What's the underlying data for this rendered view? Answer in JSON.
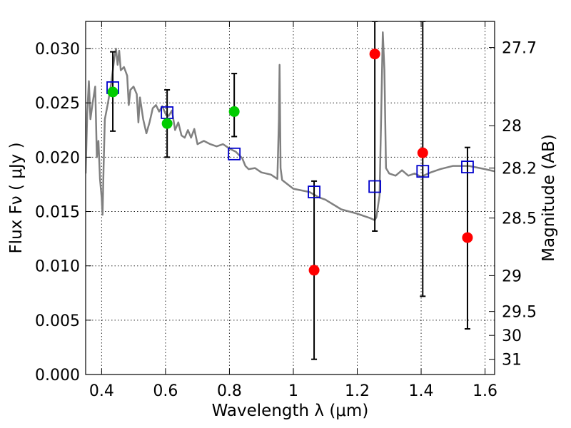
{
  "chart_data": {
    "type": "scatter",
    "title": "",
    "xlabel": "Wavelength  λ (μm)",
    "ylabel": "Flux  Fν  ( μJy )",
    "y2label": "Magnitude (AB)",
    "xlim": [
      0.35,
      1.63
    ],
    "ylim": [
      0.0,
      0.0325
    ],
    "grid": true,
    "x_ticks": [
      0.4,
      0.6,
      0.8,
      1.0,
      1.2,
      1.4,
      1.6
    ],
    "x_tick_labels": [
      "0.4",
      "0.6",
      "0.8",
      "1",
      "1.2",
      "1.4",
      "1.6"
    ],
    "y_ticks": [
      0.0,
      0.005,
      0.01,
      0.015,
      0.02,
      0.025,
      0.03
    ],
    "y_tick_labels": [
      "0.000",
      "0.005",
      "0.010",
      "0.015",
      "0.020",
      "0.025",
      "0.030"
    ],
    "y2_ticks": [
      {
        "label": "27.7",
        "flux": 0.0301
      },
      {
        "label": "28",
        "flux": 0.0229
      },
      {
        "label": "28.2",
        "flux": 0.019
      },
      {
        "label": "28.5",
        "flux": 0.0144
      },
      {
        "label": "29",
        "flux": 0.0091
      },
      {
        "label": "29.5",
        "flux": 0.0058
      },
      {
        "label": "30",
        "flux": 0.0036
      },
      {
        "label": "31",
        "flux": 0.0014
      }
    ],
    "model_spectrum": {
      "color": "#808080",
      "points": [
        [
          0.35,
          0.0185
        ],
        [
          0.355,
          0.024
        ],
        [
          0.36,
          0.027
        ],
        [
          0.365,
          0.0235
        ],
        [
          0.372,
          0.025
        ],
        [
          0.38,
          0.0265
        ],
        [
          0.385,
          0.02
        ],
        [
          0.39,
          0.0215
        ],
        [
          0.395,
          0.018
        ],
        [
          0.4,
          0.0163
        ],
        [
          0.403,
          0.0147
        ],
        [
          0.406,
          0.019
        ],
        [
          0.41,
          0.0235
        ],
        [
          0.42,
          0.025
        ],
        [
          0.43,
          0.0268
        ],
        [
          0.44,
          0.0292
        ],
        [
          0.445,
          0.03
        ],
        [
          0.45,
          0.0285
        ],
        [
          0.455,
          0.0298
        ],
        [
          0.46,
          0.028
        ],
        [
          0.47,
          0.0283
        ],
        [
          0.48,
          0.0275
        ],
        [
          0.485,
          0.0248
        ],
        [
          0.49,
          0.0262
        ],
        [
          0.5,
          0.0265
        ],
        [
          0.51,
          0.0258
        ],
        [
          0.515,
          0.0232
        ],
        [
          0.52,
          0.0255
        ],
        [
          0.53,
          0.0235
        ],
        [
          0.54,
          0.0222
        ],
        [
          0.55,
          0.0232
        ],
        [
          0.56,
          0.0245
        ],
        [
          0.57,
          0.0248
        ],
        [
          0.58,
          0.0242
        ],
        [
          0.59,
          0.0247
        ],
        [
          0.6,
          0.024
        ],
        [
          0.61,
          0.0238
        ],
        [
          0.62,
          0.0243
        ],
        [
          0.63,
          0.0225
        ],
        [
          0.64,
          0.0232
        ],
        [
          0.65,
          0.022
        ],
        [
          0.66,
          0.0218
        ],
        [
          0.67,
          0.0225
        ],
        [
          0.68,
          0.0218
        ],
        [
          0.69,
          0.0226
        ],
        [
          0.7,
          0.0212
        ],
        [
          0.72,
          0.0215
        ],
        [
          0.74,
          0.0212
        ],
        [
          0.76,
          0.021
        ],
        [
          0.78,
          0.0212
        ],
        [
          0.8,
          0.0208
        ],
        [
          0.82,
          0.0205
        ],
        [
          0.84,
          0.0199
        ],
        [
          0.85,
          0.0192
        ],
        [
          0.86,
          0.0189
        ],
        [
          0.88,
          0.019
        ],
        [
          0.9,
          0.0186
        ],
        [
          0.93,
          0.0184
        ],
        [
          0.95,
          0.018
        ],
        [
          0.955,
          0.0235
        ],
        [
          0.957,
          0.0285
        ],
        [
          0.96,
          0.019
        ],
        [
          0.965,
          0.0179
        ],
        [
          1.0,
          0.0171
        ],
        [
          1.05,
          0.0168
        ],
        [
          1.08,
          0.0163
        ],
        [
          1.1,
          0.0161
        ],
        [
          1.15,
          0.0152
        ],
        [
          1.2,
          0.0148
        ],
        [
          1.24,
          0.0144
        ],
        [
          1.255,
          0.0142
        ],
        [
          1.26,
          0.0145
        ],
        [
          1.27,
          0.0165
        ],
        [
          1.275,
          0.024
        ],
        [
          1.28,
          0.0315
        ],
        [
          1.285,
          0.028
        ],
        [
          1.29,
          0.019
        ],
        [
          1.3,
          0.0185
        ],
        [
          1.32,
          0.0183
        ],
        [
          1.34,
          0.0188
        ],
        [
          1.36,
          0.0183
        ],
        [
          1.38,
          0.0185
        ],
        [
          1.4,
          0.0182
        ],
        [
          1.43,
          0.0186
        ],
        [
          1.46,
          0.0189
        ],
        [
          1.5,
          0.0192
        ],
        [
          1.55,
          0.0192
        ],
        [
          1.6,
          0.0189
        ],
        [
          1.63,
          0.0187
        ]
      ]
    },
    "model_photometry": {
      "color": "#0000cc",
      "points": [
        [
          0.435,
          0.0264
        ],
        [
          0.605,
          0.0241
        ],
        [
          0.815,
          0.0203
        ],
        [
          1.065,
          0.0168
        ],
        [
          1.255,
          0.0173
        ],
        [
          1.405,
          0.0187
        ],
        [
          1.545,
          0.0191
        ]
      ]
    },
    "observed_green": {
      "color": "#00cc00",
      "points": [
        {
          "x": 0.435,
          "y": 0.026,
          "lo": 0.0224,
          "hi": 0.0297
        },
        {
          "x": 0.605,
          "y": 0.0231,
          "lo": 0.02,
          "hi": 0.0262
        },
        {
          "x": 0.815,
          "y": 0.0242,
          "lo": 0.0219,
          "hi": 0.0277
        }
      ]
    },
    "observed_red": {
      "color": "#ff0000",
      "points": [
        {
          "x": 1.065,
          "y": 0.0096,
          "lo": 0.0014,
          "hi": 0.0178
        },
        {
          "x": 1.255,
          "y": 0.0295,
          "lo": 0.0132,
          "hi": 0.0325
        },
        {
          "x": 1.405,
          "y": 0.0204,
          "lo": 0.0072,
          "hi": 0.0325
        },
        {
          "x": 1.545,
          "y": 0.0126,
          "lo": 0.0042,
          "hi": 0.0209
        }
      ]
    }
  }
}
